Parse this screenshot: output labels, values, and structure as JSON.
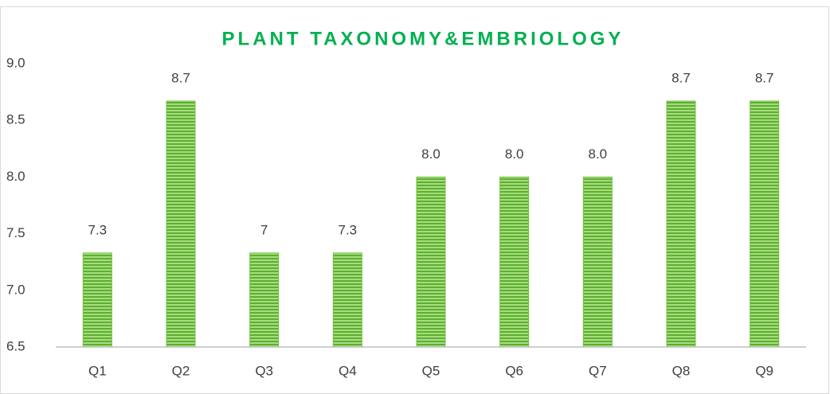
{
  "chart_data": {
    "type": "bar",
    "title": "PLANT TAXONOMY&EMBRIOLOGY",
    "categories": [
      "Q1",
      "Q2",
      "Q3",
      "Q4",
      "Q5",
      "Q6",
      "Q7",
      "Q8",
      "Q9"
    ],
    "values": [
      7.33,
      8.67,
      7.33,
      7.33,
      8.0,
      8.0,
      8.0,
      8.67,
      8.67
    ],
    "value_labels": [
      "7.3",
      "8.7",
      "7",
      "7.3",
      "8.0",
      "8.0",
      "8.0",
      "8.7",
      "8.7"
    ],
    "color": "#70c040",
    "ylim": [
      6.5,
      9.0
    ],
    "yticks": [
      6.5,
      {
        "value": 7,
        "label": "7.0"
      },
      7.5,
      {
        "value": 8,
        "label": "8.0"
      },
      8.5,
      {
        "value": 9,
        "label": "9.0"
      }
    ],
    "grid": false
  }
}
